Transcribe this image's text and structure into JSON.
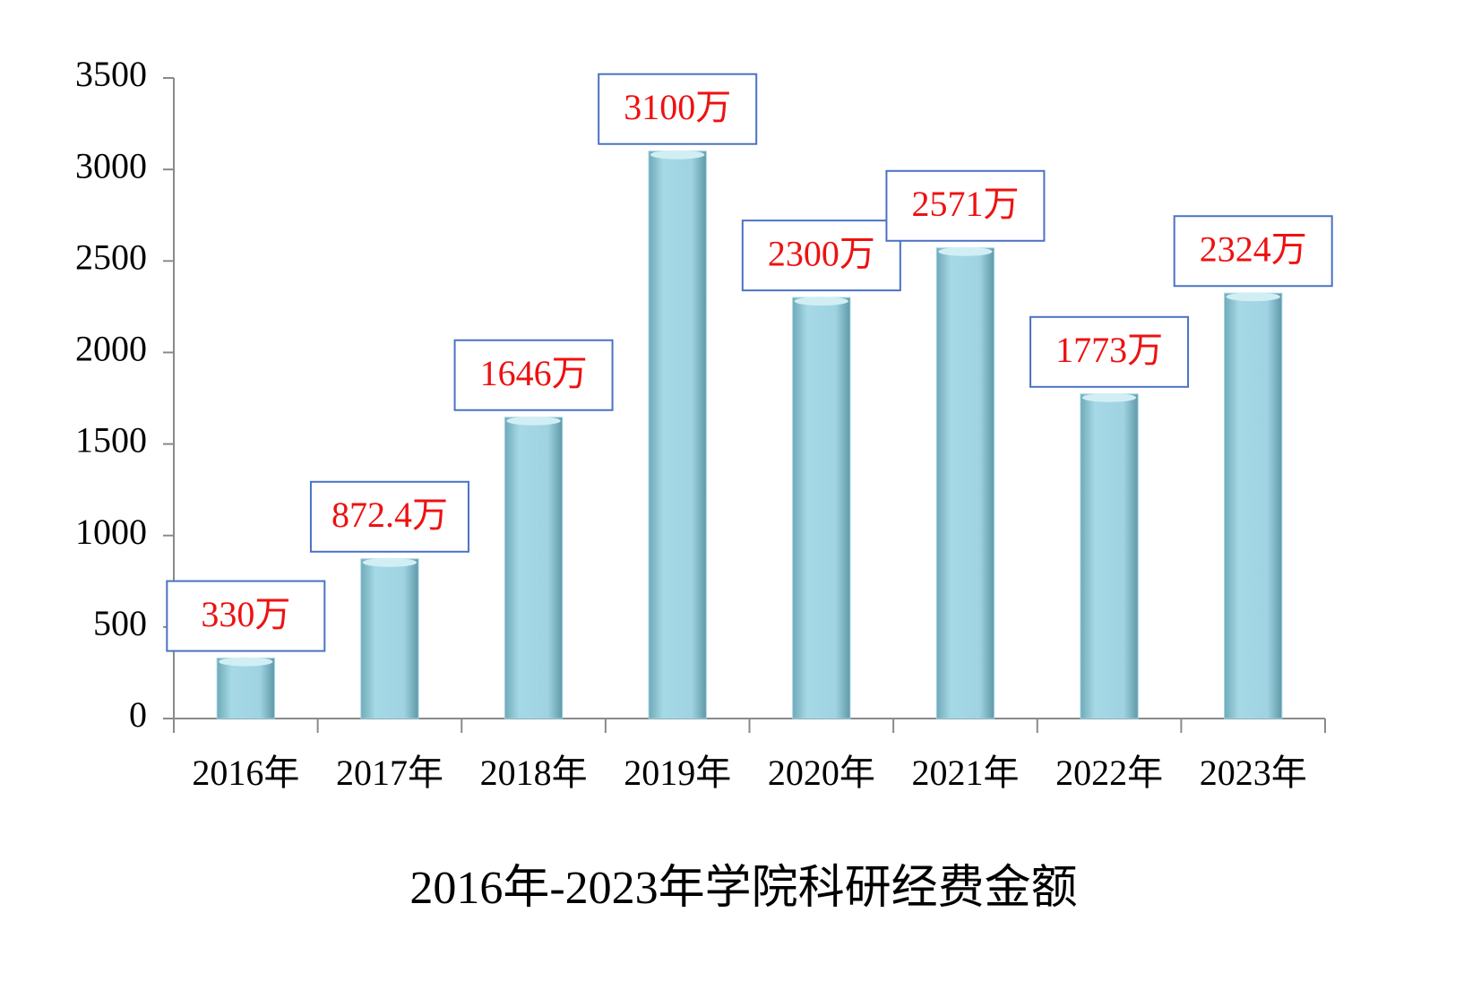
{
  "chart_data": {
    "type": "bar",
    "title": "2016年-2023年学院科研经费金额",
    "categories": [
      "2016年",
      "2017年",
      "2018年",
      "2019年",
      "2020年",
      "2021年",
      "2022年",
      "2023年"
    ],
    "values": [
      330,
      872.4,
      1646,
      3100,
      2300,
      2571,
      1773,
      2324
    ],
    "value_labels": [
      "330万",
      "872.4万",
      "1646万",
      "3100万",
      "2300万",
      "2571万",
      "1773万",
      "2324万"
    ],
    "color": "#9fd3e1",
    "ylim": [
      0,
      3500
    ],
    "yticks": [
      0,
      500,
      1000,
      1500,
      2000,
      2500,
      3000,
      3500
    ],
    "grid": false
  }
}
